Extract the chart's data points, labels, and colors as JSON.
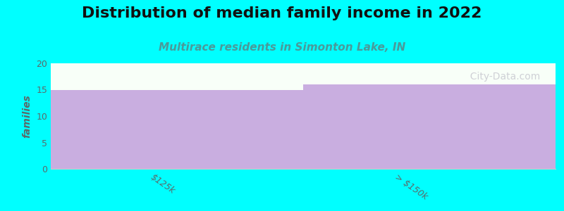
{
  "title": "Distribution of median family income in 2022",
  "subtitle": "Multirace residents in Simonton Lake, IN",
  "categories": [
    "$125k",
    "> $150k"
  ],
  "values": [
    15,
    16
  ],
  "bar_color": "#c9aee0",
  "background_color": "#00ffff",
  "plot_bg_color": "#f8fff8",
  "ylabel": "families",
  "ylim": [
    0,
    20
  ],
  "yticks": [
    0,
    5,
    10,
    15,
    20
  ],
  "title_fontsize": 16,
  "subtitle_fontsize": 11,
  "subtitle_color": "#4a9a9a",
  "ylabel_color": "#5a6a6a",
  "tick_color": "#5a6a6a",
  "watermark": "  City-Data.com"
}
